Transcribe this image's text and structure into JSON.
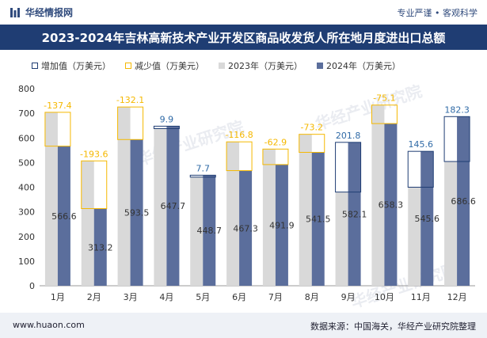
{
  "header": {
    "brand": "华经情报网",
    "tagline": "专业严谨 • 客观科学",
    "title": "2023-2024年吉林高新技术产业开发区商品收发货人所在地月度进出口总额"
  },
  "watermarks": [
    "华经产业研究院",
    "华经产业研究院",
    "华经产业研究院"
  ],
  "legend": {
    "increase": "增加值（万美元）",
    "decrease": "减少值（万美元）",
    "y2023": "2023年（万美元）",
    "y2024": "2024年（万美元）"
  },
  "colors": {
    "bar2023": "#d9d9d9",
    "bar2024": "#5b6e9c",
    "increase_border": "#1f3d73",
    "decrease_border": "#f5b800",
    "increase_text": "#2f6aa6",
    "decrease_text": "#f5b800",
    "title_bg": "#1f3d73"
  },
  "chart_data": {
    "type": "bar",
    "categories": [
      "1月",
      "2月",
      "3月",
      "4月",
      "5月",
      "6月",
      "7月",
      "8月",
      "9月",
      "10月",
      "11月",
      "12月"
    ],
    "ylim": [
      0,
      800
    ],
    "yticks": [
      0,
      100,
      200,
      300,
      400,
      500,
      600,
      700,
      800
    ],
    "series": [
      {
        "name": "2023年（万美元）",
        "values": [
          704.0,
          506.8,
          725.6,
          637.8,
          441.0,
          584.1,
          554.8,
          614.7,
          380.3,
          733.4,
          400.0,
          504.3
        ]
      },
      {
        "name": "2024年（万美元）",
        "values": [
          566.6,
          313.2,
          593.5,
          647.7,
          448.7,
          467.3,
          491.9,
          541.5,
          582.1,
          658.3,
          545.6,
          686.6
        ]
      }
    ],
    "change_labels": [
      "-137.4",
      "-193.6",
      "-132.1",
      "9.9",
      "7.7",
      "-116.8",
      "-62.9",
      "-73.2",
      "201.8",
      "-75.1",
      "145.6",
      "182.3"
    ],
    "value_labels_2024": [
      "566.6",
      "313.2",
      "593.5",
      "647.7",
      "448.7",
      "467.3",
      "491.9",
      "541.5",
      "582.1",
      "658.3",
      "545.6",
      "686.6"
    ]
  },
  "footer": {
    "url": "www.huaon.com",
    "source": "数据来源：中国海关，华经产业研究院整理"
  }
}
